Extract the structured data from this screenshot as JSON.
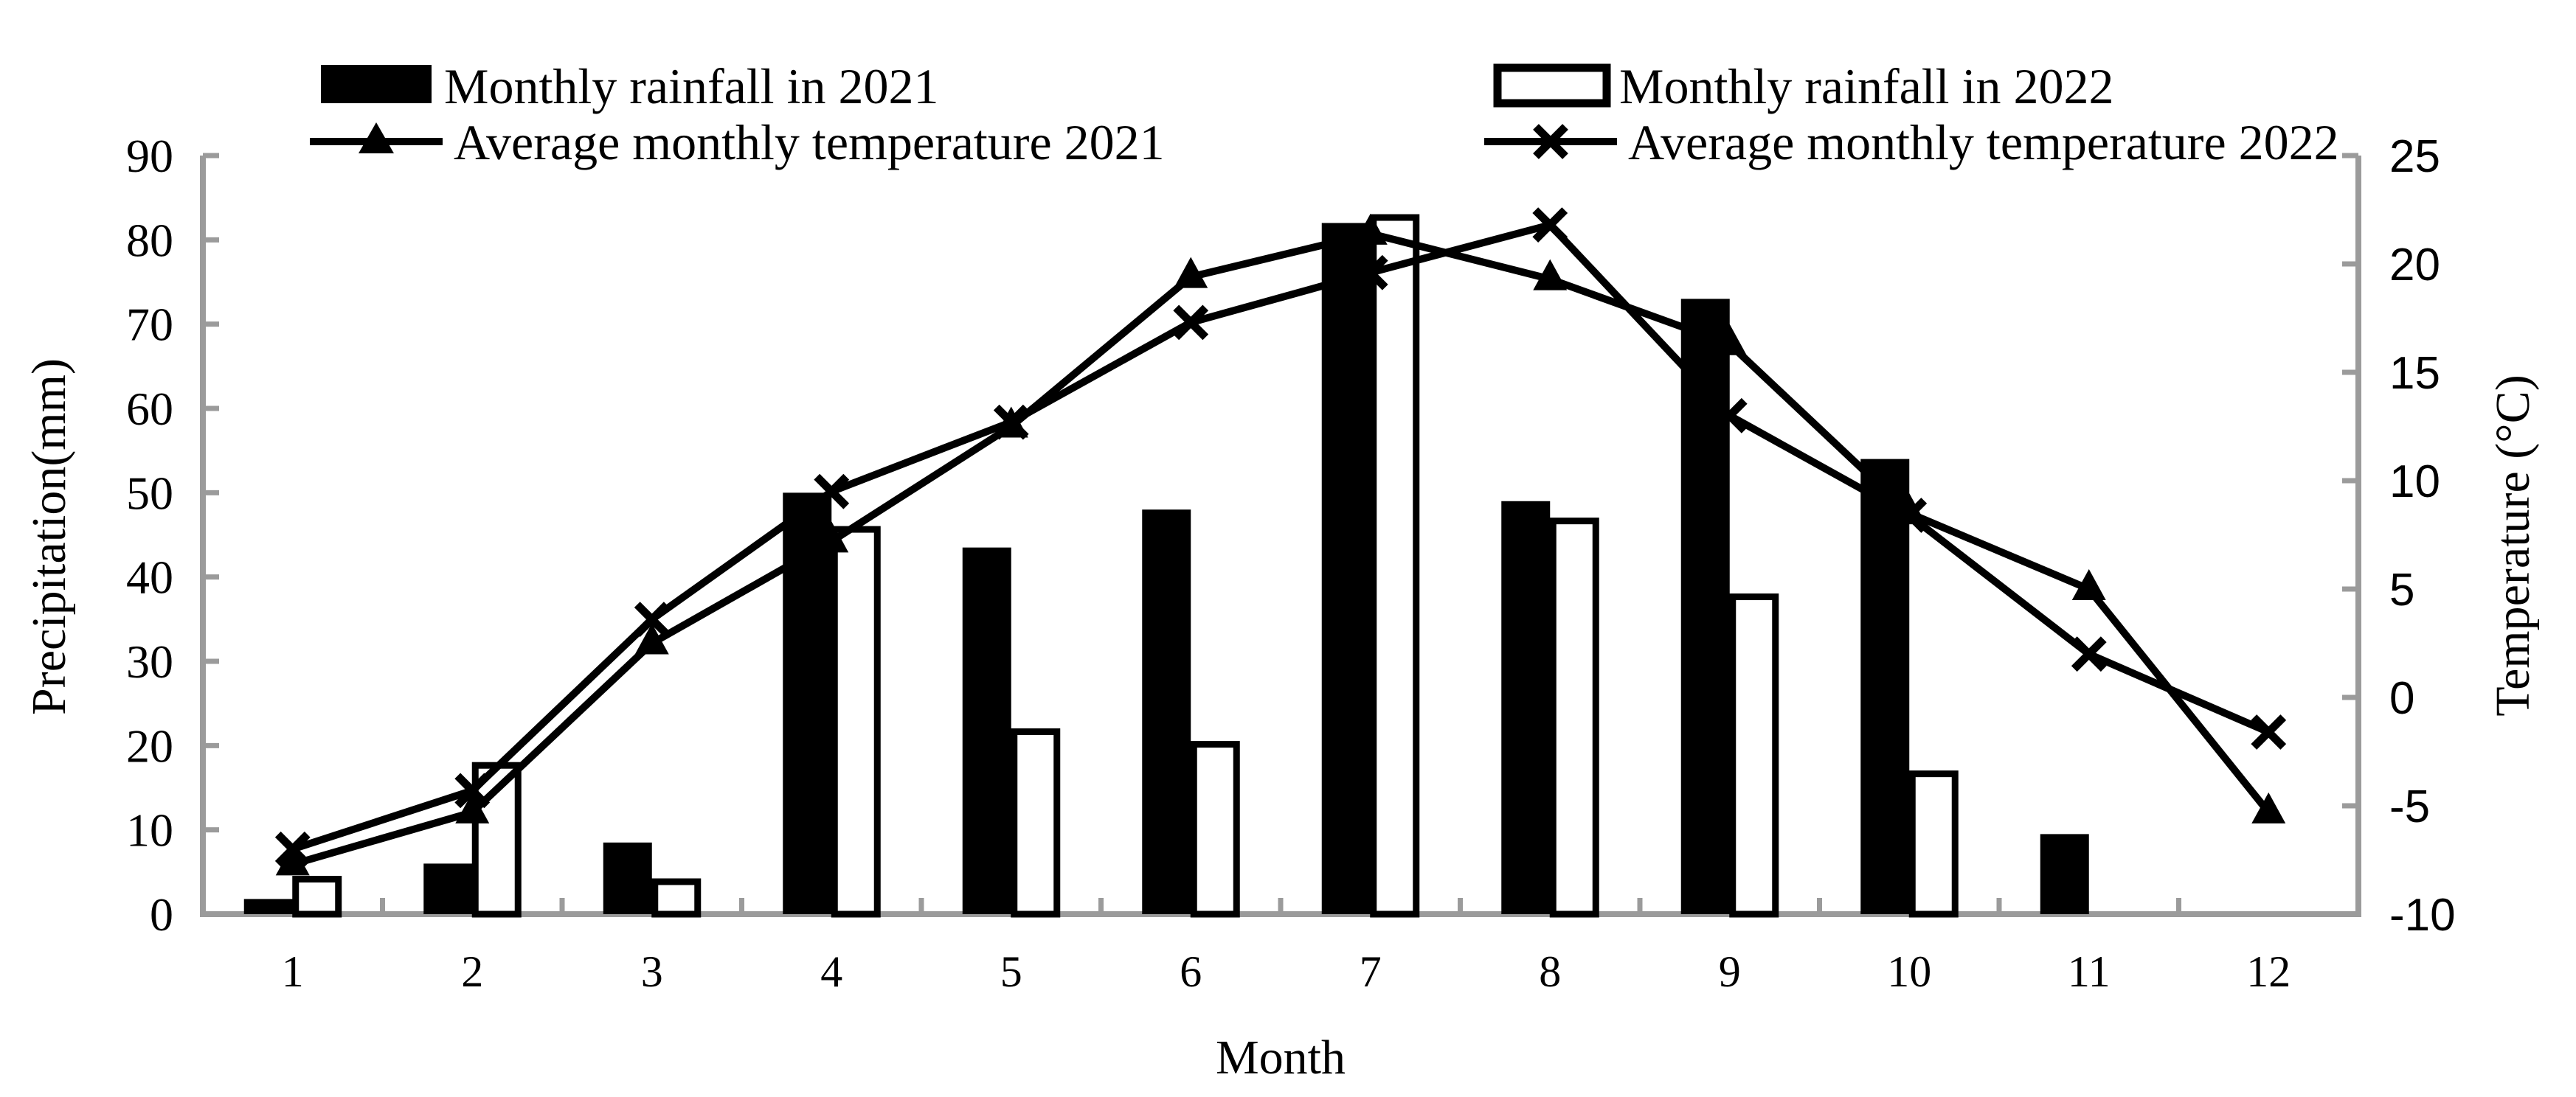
{
  "page": {
    "background": "#ffffff",
    "text_color": "#000000"
  },
  "chart_data": {
    "type": "bar",
    "subtype": "combo-bar-line-dual-axis",
    "categories": [
      "1",
      "2",
      "3",
      "4",
      "5",
      "6",
      "7",
      "8",
      "9",
      "10",
      "11",
      "12"
    ],
    "xlabel": "Month",
    "left_axis": {
      "title": "Precipitation(mm)",
      "min": 0,
      "max": 90,
      "step": 10,
      "tick_labels": [
        "0",
        "10",
        "20",
        "30",
        "40",
        "50",
        "60",
        "70",
        "80",
        "90"
      ]
    },
    "right_axis": {
      "title": "Temperature (°C)",
      "min": -10,
      "max": 25,
      "step": 5,
      "tick_labels": [
        "-10",
        "-5",
        "0",
        "5",
        "10",
        "15",
        "20",
        "25"
      ]
    },
    "series": [
      {
        "name": "Monthly rainfall in 2021",
        "type": "bar",
        "fill": "solid",
        "color": "#000000",
        "axis": "left",
        "swatch": "filled-bar-swatch",
        "values": [
          1.8,
          6,
          8.5,
          50,
          43.5,
          48,
          82,
          49,
          73,
          54,
          9.5,
          0
        ]
      },
      {
        "name": "Monthly rainfall in 2022",
        "type": "bar",
        "fill": "outline",
        "color": "#000000",
        "axis": "left",
        "swatch": "outlined-bar-swatch",
        "values": [
          4.5,
          18,
          4.2,
          46,
          22,
          20.5,
          83,
          47,
          38,
          17,
          0,
          0
        ]
      },
      {
        "name": "Average monthly temperature 2021",
        "type": "line",
        "marker": "triangle-marker",
        "color": "#000000",
        "axis": "right",
        "values": [
          -7.7,
          -5.3,
          2.5,
          7.2,
          12.5,
          19.4,
          21.4,
          19.3,
          16.3,
          8.5,
          5.0,
          -5.3
        ]
      },
      {
        "name": "Average monthly temperature 2022",
        "type": "line",
        "marker": "x-marker",
        "color": "#000000",
        "axis": "right",
        "values": [
          -7.0,
          -4.3,
          3.6,
          9.5,
          12.7,
          17.3,
          19.6,
          21.8,
          13.0,
          8.4,
          2.0,
          -1.6
        ]
      }
    ],
    "legend_position": "top",
    "grid": false,
    "axis_line_color": "#9b9b9b",
    "series_color": "#000000"
  },
  "legend": {
    "items": [
      {
        "label": "Monthly rainfall in 2021"
      },
      {
        "label": "Monthly rainfall in 2022"
      },
      {
        "label": "Average monthly temperature 2021"
      },
      {
        "label": "Average monthly temperature 2022"
      }
    ]
  }
}
